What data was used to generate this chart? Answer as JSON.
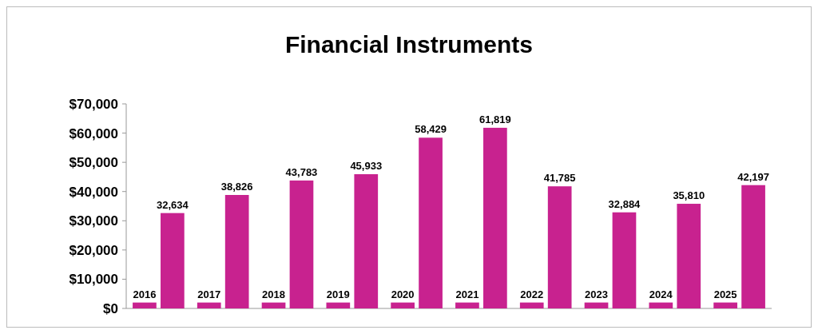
{
  "chart_data": {
    "type": "bar",
    "title": "Financial Instruments",
    "categories": [
      null,
      null,
      null,
      null,
      null,
      null,
      null,
      null,
      null,
      null
    ],
    "series": [
      {
        "color": "#c8228f",
        "values": [
          2016,
          2017,
          2018,
          2019,
          2020,
          2021,
          2022,
          2023,
          2024,
          2025
        ],
        "value_labels": [
          "2016",
          "2017",
          "2018",
          "2019",
          "2020",
          "2021",
          "2022",
          "2023",
          "2024",
          "2025"
        ]
      },
      {
        "color": "#c8228f",
        "values": [
          32634,
          38826,
          43783,
          45933,
          58429,
          61819,
          41785,
          32884,
          35810,
          42197
        ],
        "value_labels": [
          "32,634",
          "38,826",
          "43,783",
          "45,933",
          "58,429",
          "61,819",
          "41,785",
          "32,884",
          "35,810",
          "42,197"
        ]
      }
    ],
    "ylim": [
      0,
      70000
    ],
    "yticks": [
      {
        "value": 0,
        "label": "$0"
      },
      {
        "value": 10000,
        "label": "$10,000"
      },
      {
        "value": 20000,
        "label": "$20,000"
      },
      {
        "value": 30000,
        "label": "$30,000"
      },
      {
        "value": 40000,
        "label": "$40,000"
      },
      {
        "value": 50000,
        "label": "$50,000"
      },
      {
        "value": 60000,
        "label": "$60,000"
      },
      {
        "value": 70000,
        "label": "$70,000"
      }
    ],
    "grid": false
  }
}
